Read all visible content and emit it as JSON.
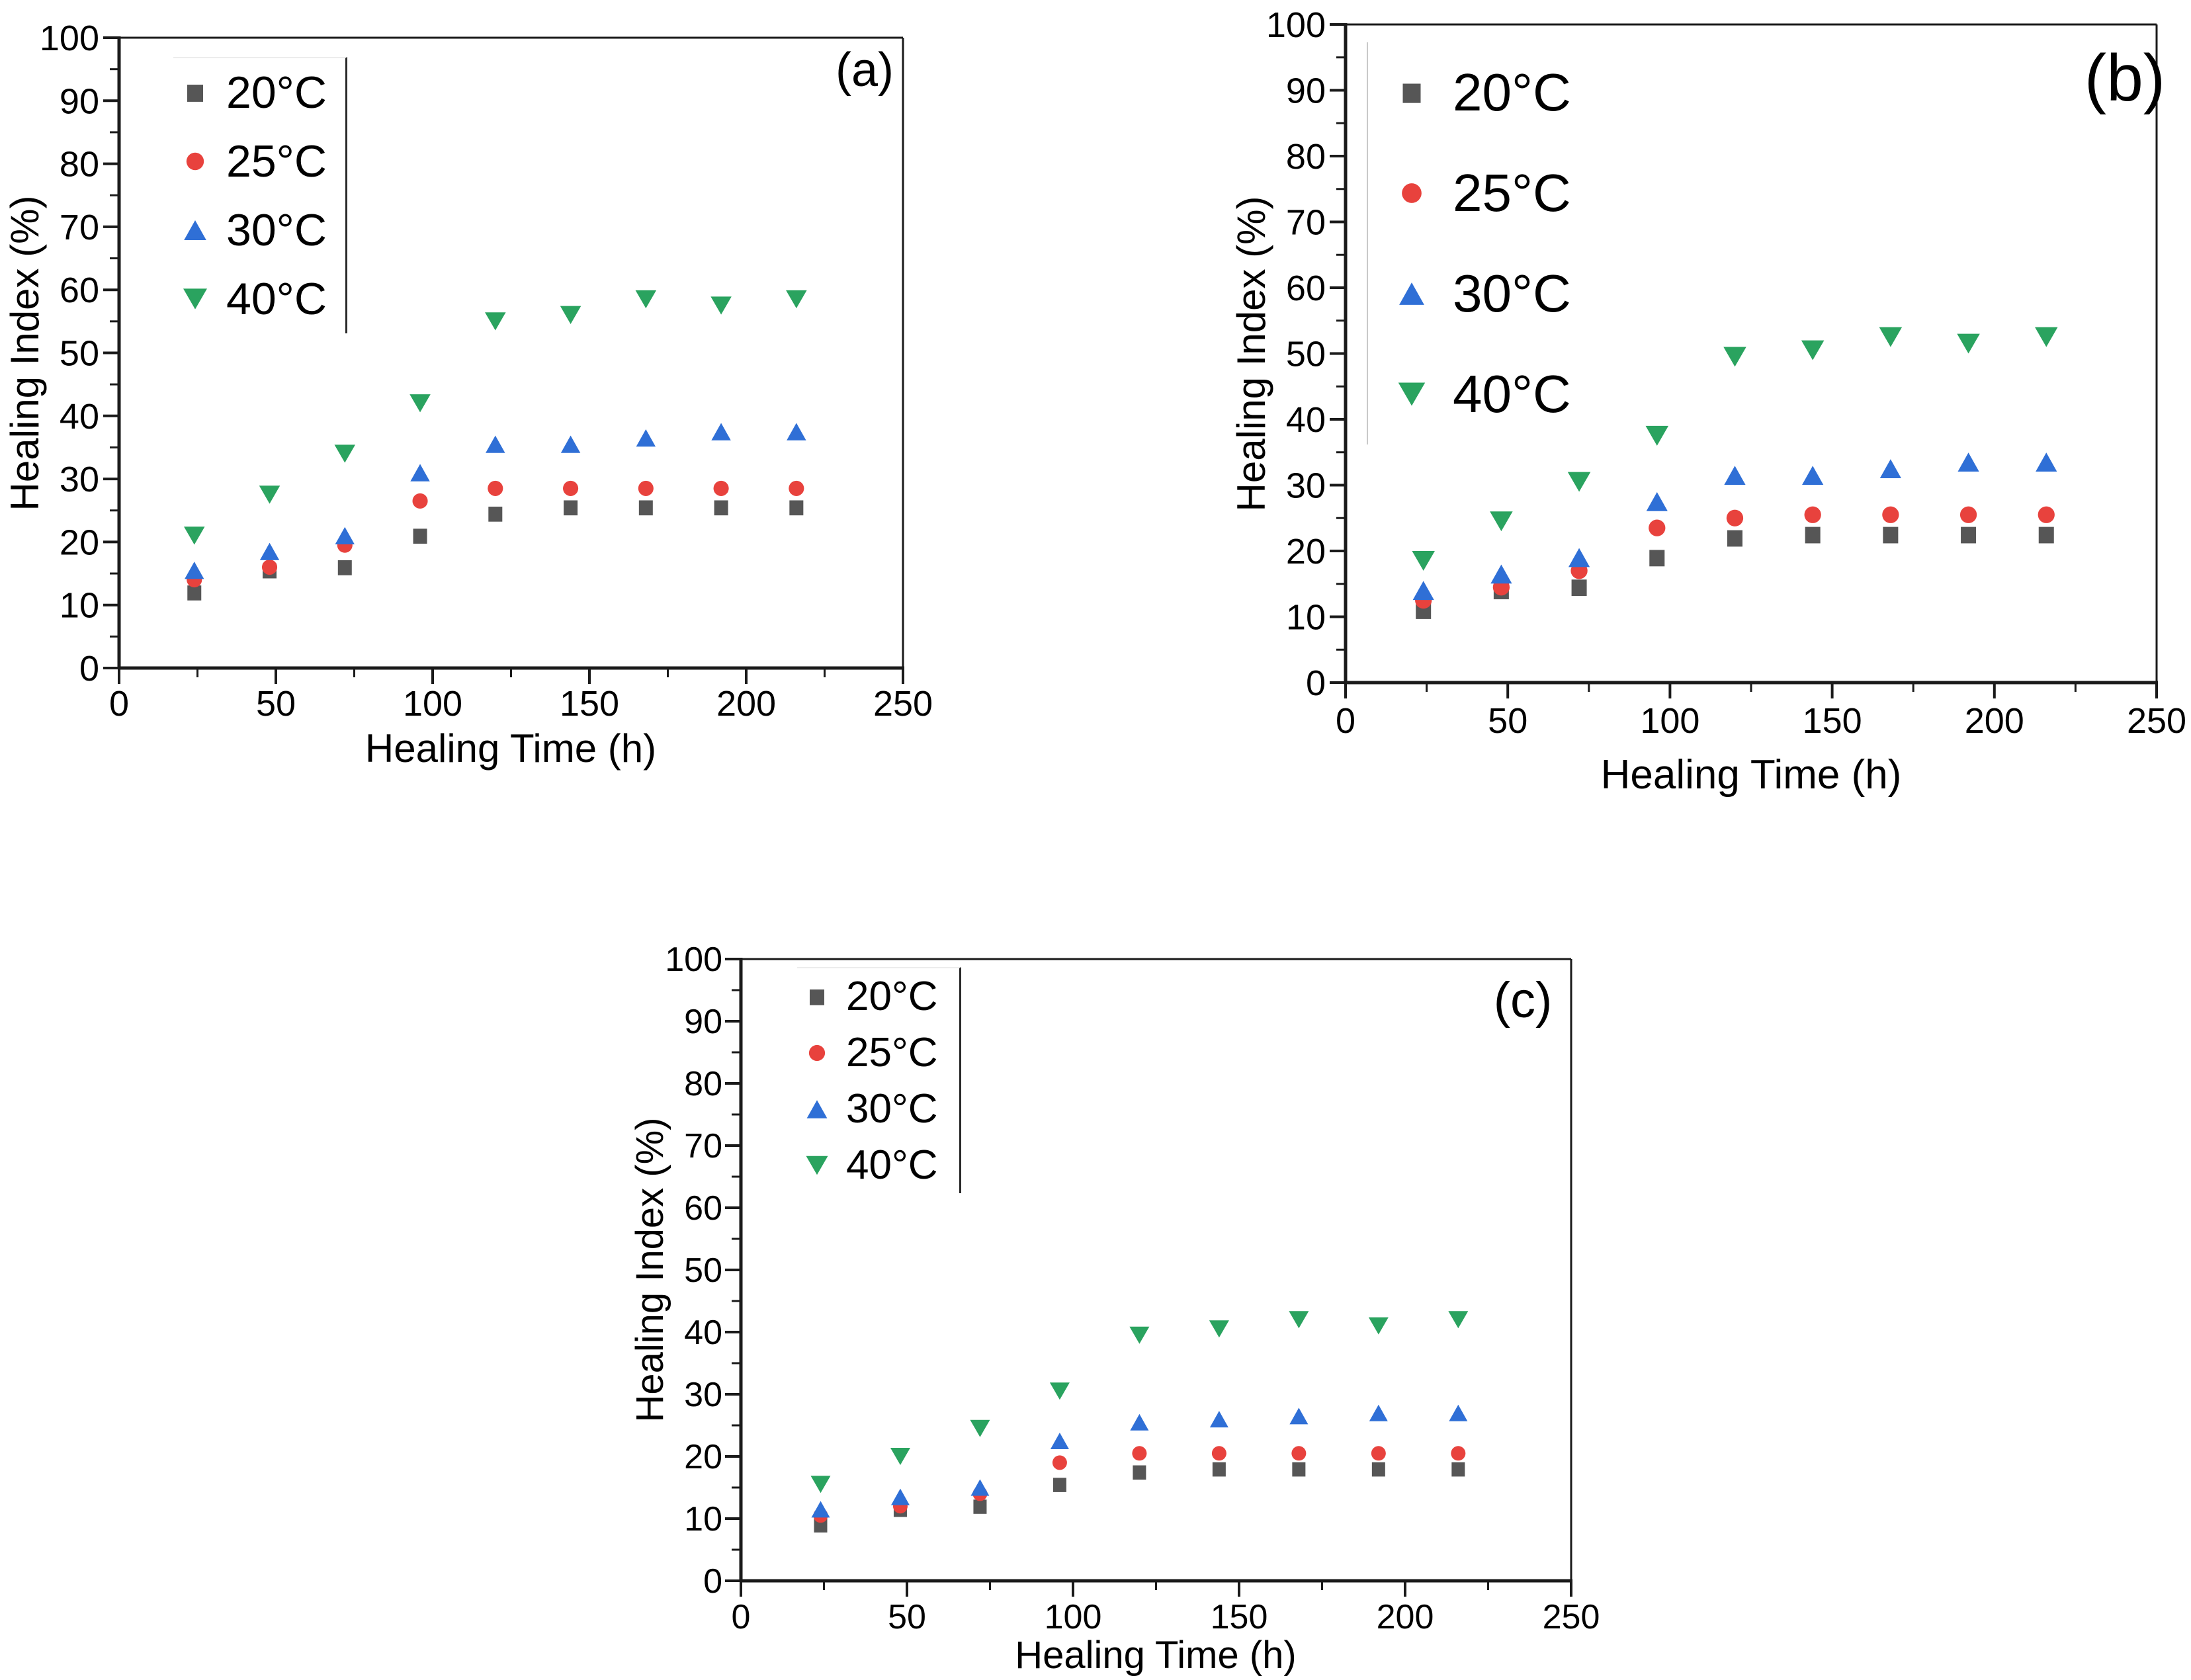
{
  "figure_background": "#ffffff",
  "axis_color": "#1a1a1a",
  "chart_data": [
    {
      "type": "scatter",
      "panel_label": "(a)",
      "xlabel": "Healing Time (h)",
      "ylabel": "Healing Index (%)",
      "xlim": [
        0,
        250
      ],
      "ylim": [
        0,
        100
      ],
      "x_ticks": [
        0,
        50,
        100,
        150,
        200,
        250
      ],
      "y_ticks": [
        0,
        10,
        20,
        30,
        40,
        50,
        60,
        70,
        80,
        90,
        100
      ],
      "grid": false,
      "legend_position": "upper-left",
      "x": [
        24,
        48,
        72,
        96,
        120,
        144,
        168,
        192,
        216
      ],
      "series": [
        {
          "name": "20°C",
          "marker": "square",
          "color": "#565656",
          "values": [
            12,
            15.5,
            16,
            21,
            24.5,
            25.5,
            25.5,
            25.5,
            25.5
          ]
        },
        {
          "name": "25°C",
          "marker": "circle",
          "color": "#e8423d",
          "values": [
            14,
            16,
            19.5,
            26.5,
            28.5,
            28.5,
            28.5,
            28.5,
            28.5
          ]
        },
        {
          "name": "30°C",
          "marker": "triangle-up",
          "color": "#2f6fd6",
          "values": [
            15.5,
            18.5,
            21,
            31,
            35.5,
            35.5,
            36.5,
            37.5,
            37.5
          ]
        },
        {
          "name": "40°C",
          "marker": "triangle-down",
          "color": "#2aa35f",
          "values": [
            21,
            27.5,
            34,
            42,
            55,
            56,
            58.5,
            57.5,
            58.5
          ]
        }
      ]
    },
    {
      "type": "scatter",
      "panel_label": "(b)",
      "xlabel": "Healing Time (h)",
      "ylabel": "Healing Index (%)",
      "xlim": [
        0,
        250
      ],
      "ylim": [
        0,
        100
      ],
      "x_ticks": [
        0,
        50,
        100,
        150,
        200,
        250
      ],
      "y_ticks": [
        0,
        10,
        20,
        30,
        40,
        50,
        60,
        70,
        80,
        90,
        100
      ],
      "grid": false,
      "legend_position": "upper-left",
      "x": [
        24,
        48,
        72,
        96,
        120,
        144,
        168,
        192,
        216
      ],
      "series": [
        {
          "name": "20°C",
          "marker": "square",
          "color": "#565656",
          "values": [
            11,
            14,
            14.5,
            19,
            22,
            22.5,
            22.5,
            22.5,
            22.5
          ]
        },
        {
          "name": "25°C",
          "marker": "circle",
          "color": "#e8423d",
          "values": [
            12.5,
            14.5,
            17,
            23.5,
            25,
            25.5,
            25.5,
            25.5,
            25.5
          ]
        },
        {
          "name": "30°C",
          "marker": "triangle-up",
          "color": "#2f6fd6",
          "values": [
            14,
            16.5,
            19,
            27.5,
            31.5,
            31.5,
            32.5,
            33.5,
            33.5
          ]
        },
        {
          "name": "40°C",
          "marker": "triangle-down",
          "color": "#2aa35f",
          "values": [
            18.5,
            24.5,
            30.5,
            37.5,
            49.5,
            50.5,
            52.5,
            51.5,
            52.5
          ]
        }
      ]
    },
    {
      "type": "scatter",
      "panel_label": "(c)",
      "xlabel": "Healing Time (h)",
      "ylabel": "Healing Index (%)",
      "xlim": [
        0,
        250
      ],
      "ylim": [
        0,
        100
      ],
      "x_ticks": [
        0,
        50,
        100,
        150,
        200,
        250
      ],
      "y_ticks": [
        0,
        10,
        20,
        30,
        40,
        50,
        60,
        70,
        80,
        90,
        100
      ],
      "grid": false,
      "legend_position": "upper-left",
      "x": [
        24,
        48,
        72,
        96,
        120,
        144,
        168,
        192,
        216
      ],
      "series": [
        {
          "name": "20°C",
          "marker": "square",
          "color": "#565656",
          "values": [
            9,
            11.5,
            12,
            15.5,
            17.5,
            18,
            18,
            18,
            18
          ]
        },
        {
          "name": "25°C",
          "marker": "circle",
          "color": "#e8423d",
          "values": [
            10.5,
            12,
            14,
            19,
            20.5,
            20.5,
            20.5,
            20.5,
            20.5
          ]
        },
        {
          "name": "30°C",
          "marker": "triangle-up",
          "color": "#2f6fd6",
          "values": [
            11.5,
            13.5,
            15,
            22.5,
            25.5,
            26,
            26.5,
            27,
            27
          ]
        },
        {
          "name": "40°C",
          "marker": "triangle-down",
          "color": "#2aa35f",
          "values": [
            15.5,
            20,
            24.5,
            30.5,
            39.5,
            40.5,
            42,
            41,
            42
          ]
        }
      ]
    }
  ]
}
